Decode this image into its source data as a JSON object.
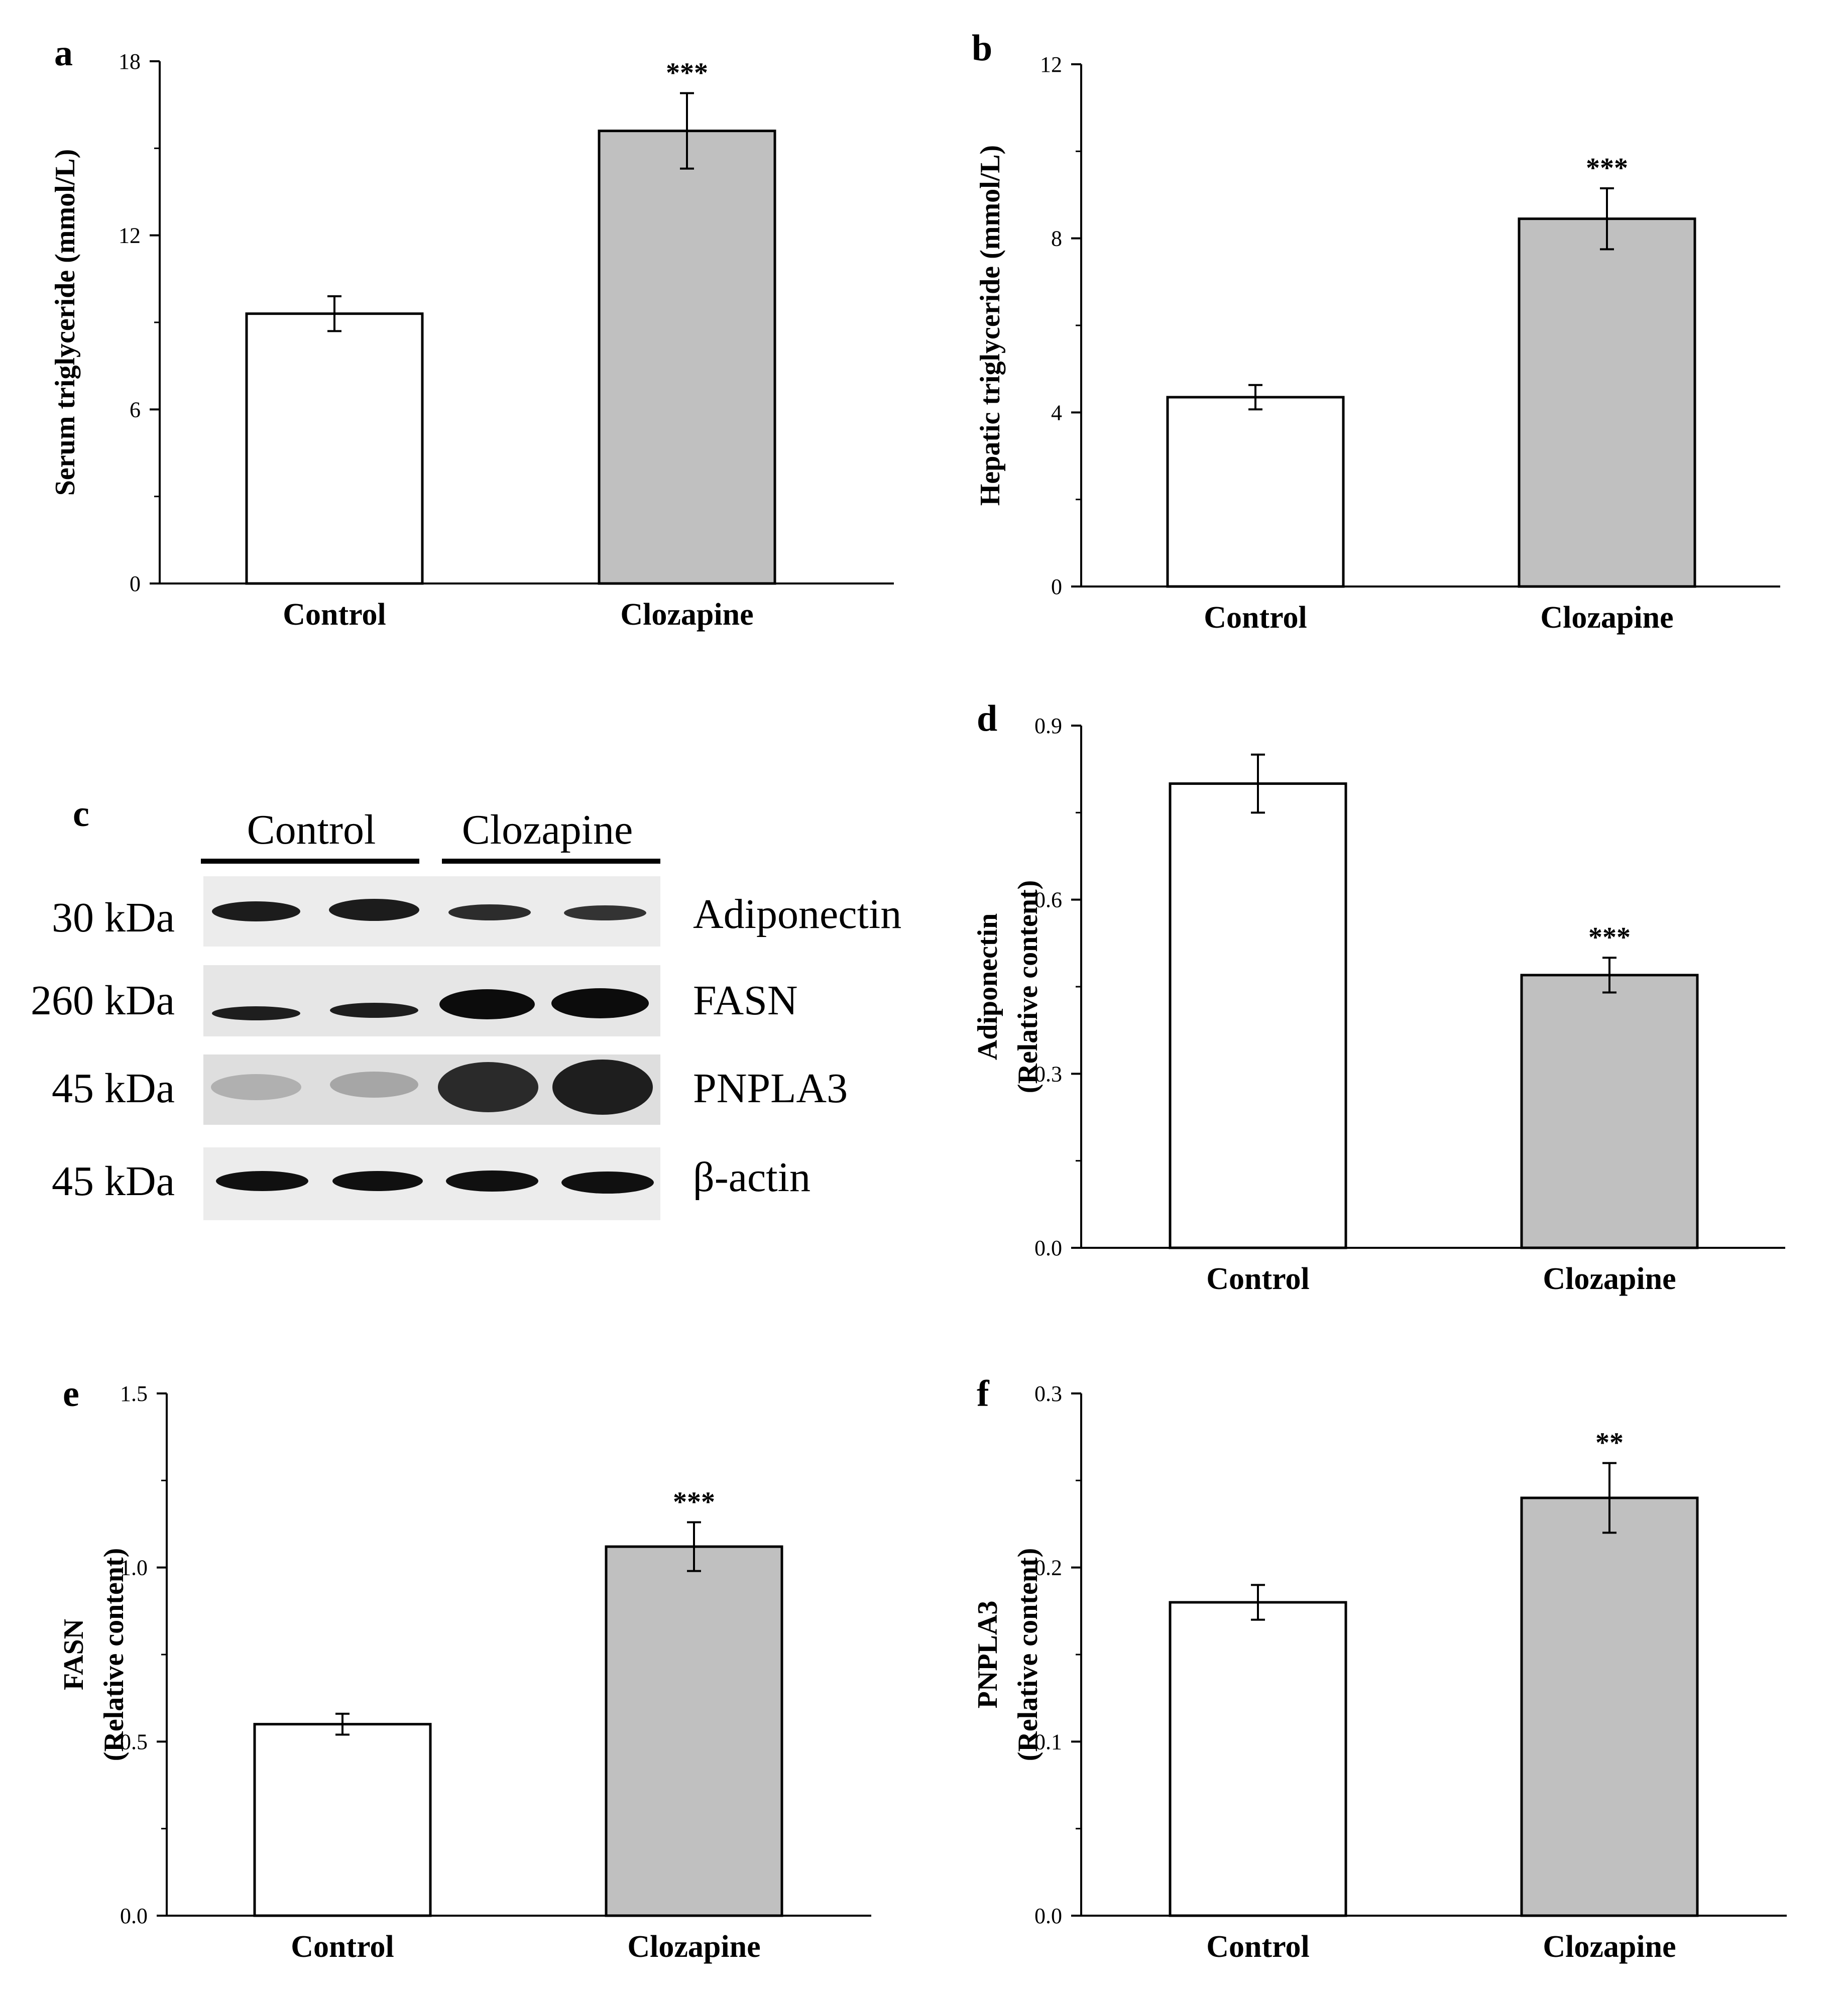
{
  "panels": {
    "a": {
      "letter": "a"
    },
    "b": {
      "letter": "b"
    },
    "c": {
      "letter": "c"
    },
    "d": {
      "letter": "d"
    },
    "e": {
      "letter": "e"
    },
    "f": {
      "letter": "f"
    }
  },
  "blot": {
    "groups": [
      "Control",
      "Clozapine"
    ],
    "rows": [
      {
        "marker": "30 kDa",
        "protein": "Adiponectin"
      },
      {
        "marker": "260 kDa",
        "protein": "FASN"
      },
      {
        "marker": "45 kDa",
        "protein": "PNPLA3"
      },
      {
        "marker": "45 kDa",
        "protein": "β-actin"
      }
    ]
  },
  "colors": {
    "control": "#ffffff",
    "clozapine": "#c0c0c0",
    "stroke": "#000000"
  },
  "chart_data": [
    {
      "panel": "a",
      "type": "bar",
      "categories": [
        "Control",
        "Clozapine"
      ],
      "values": [
        9.3,
        15.6
      ],
      "errors": [
        0.6,
        1.3
      ],
      "significance": [
        "",
        "***"
      ],
      "ylabel": "Serum triglyceride (mmol/L)",
      "ylim": [
        0,
        18
      ],
      "yticks": [
        0,
        6,
        12,
        18
      ],
      "tick_labels": [
        "0",
        "6",
        "12",
        "18"
      ]
    },
    {
      "panel": "b",
      "type": "bar",
      "categories": [
        "Control",
        "Clozapine"
      ],
      "values": [
        4.35,
        8.45
      ],
      "errors": [
        0.28,
        0.7
      ],
      "significance": [
        "",
        "***"
      ],
      "ylabel": "Hepatic triglyceride (mmol/L)",
      "ylim": [
        0,
        12
      ],
      "yticks": [
        0,
        4,
        8,
        12
      ],
      "tick_labels": [
        "0",
        "4",
        "8",
        "12"
      ]
    },
    {
      "panel": "d",
      "type": "bar",
      "categories": [
        "Control",
        "Clozapine"
      ],
      "values": [
        0.8,
        0.47
      ],
      "errors": [
        0.05,
        0.03
      ],
      "significance": [
        "",
        "***"
      ],
      "ylabel": [
        "Adiponectin",
        "(Relative content)"
      ],
      "ylim": [
        0,
        0.9
      ],
      "yticks": [
        0,
        0.3,
        0.6,
        0.9
      ],
      "tick_labels": [
        "0.0",
        "0.3",
        "0.6",
        "0.9"
      ]
    },
    {
      "panel": "e",
      "type": "bar",
      "categories": [
        "Control",
        "Clozapine"
      ],
      "values": [
        0.55,
        1.06
      ],
      "errors": [
        0.03,
        0.07
      ],
      "significance": [
        "",
        "***"
      ],
      "ylabel": [
        "FASN",
        "(Relative content)"
      ],
      "ylim": [
        0,
        1.5
      ],
      "yticks": [
        0,
        0.5,
        1.0,
        1.5
      ],
      "tick_labels": [
        "0.0",
        "0.5",
        "1.0",
        "1.5"
      ]
    },
    {
      "panel": "f",
      "type": "bar",
      "categories": [
        "Control",
        "Clozapine"
      ],
      "values": [
        0.18,
        0.24
      ],
      "errors": [
        0.01,
        0.02
      ],
      "significance": [
        "",
        "**"
      ],
      "ylabel": [
        "PNPLA3",
        "(Relative content)"
      ],
      "ylim": [
        0,
        0.3
      ],
      "yticks": [
        0,
        0.1,
        0.2,
        0.3
      ],
      "tick_labels": [
        "0.0",
        "0.1",
        "0.2",
        "0.3"
      ]
    }
  ]
}
